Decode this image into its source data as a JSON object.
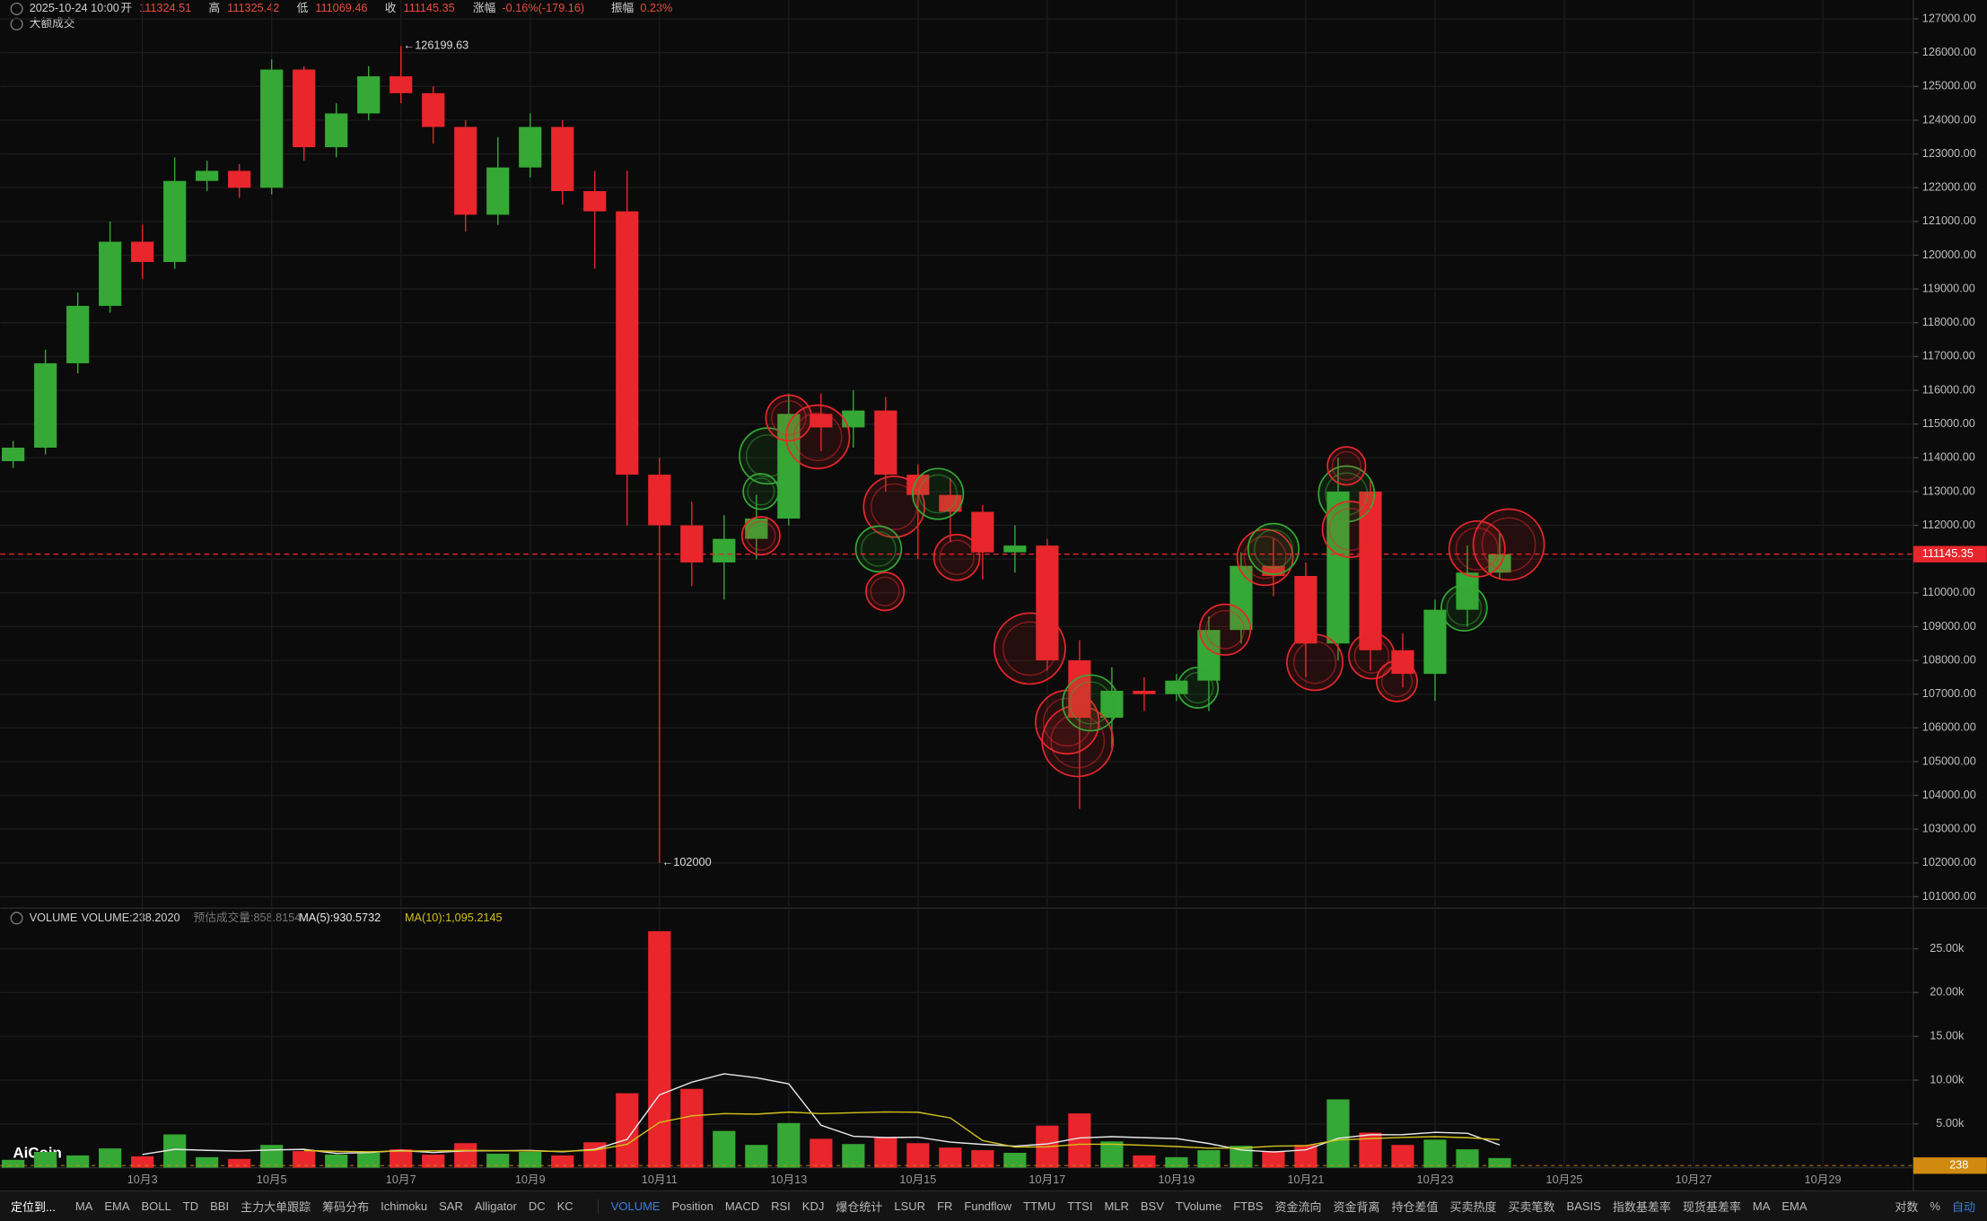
{
  "header": {
    "datetime": "2025-10-24 10:00",
    "items": [
      {
        "label": "开",
        "value": 111324.51
      },
      {
        "label": "高",
        "value": 111325.42
      },
      {
        "label": "低",
        "value": 111069.46
      },
      {
        "label": "收",
        "value": 111145.35
      },
      {
        "label": "涨幅",
        "value": "-0.16%(-179.16)"
      },
      {
        "label": "振幅",
        "value": "0.23%"
      }
    ],
    "overlay": "大额成交"
  },
  "logo": "AiCoin",
  "chart_data": [
    {
      "type": "candlestick",
      "up_color": "#35a835",
      "down_color": "#e8262c",
      "grid": true,
      "x": [
        1,
        1.5,
        2,
        2.5,
        3,
        3.5,
        4,
        4.5,
        5,
        5.5,
        6,
        6.5,
        7,
        7.5,
        8,
        8.5,
        9,
        9.5,
        10,
        10.5,
        11,
        11.5,
        12,
        12.5,
        13,
        13.5,
        14,
        14.5,
        15,
        15.5,
        16,
        16.5,
        17,
        17.5,
        18,
        18.5,
        19,
        19.5,
        20,
        20.5,
        21,
        21.5,
        22,
        22.5,
        23,
        23.5,
        24
      ],
      "open": [
        113900,
        114300,
        116800,
        118500,
        120400,
        119800,
        122200,
        122500,
        122000,
        125500,
        123200,
        124200,
        125300,
        124800,
        123800,
        121200,
        122600,
        123800,
        121900,
        121300,
        113500,
        112000,
        110900,
        111600,
        112200,
        115300,
        114900,
        115400,
        113500,
        112900,
        112400,
        111200,
        111400,
        108000,
        106300,
        107100,
        107000,
        107400,
        108900,
        110800,
        110500,
        108500,
        113000,
        108300,
        107600,
        109500,
        110600
      ],
      "high": [
        114500,
        117200,
        118900,
        121000,
        120900,
        122900,
        122800,
        122700,
        125800,
        125600,
        124500,
        125600,
        126199.63,
        125000,
        124000,
        123500,
        124200,
        124000,
        122500,
        122500,
        114000,
        112700,
        112300,
        112900,
        115900,
        115900,
        116000,
        115800,
        113800,
        113400,
        112600,
        112000,
        111600,
        108600,
        107800,
        107500,
        107600,
        109300,
        111200,
        111600,
        110900,
        114000,
        113400,
        108800,
        109800,
        111400,
        111800
      ],
      "low": [
        113700,
        114100,
        116500,
        118300,
        119300,
        119600,
        121900,
        121700,
        121800,
        122800,
        122900,
        124000,
        124500,
        123300,
        120700,
        120900,
        122300,
        121500,
        119600,
        112000,
        102000,
        110200,
        109800,
        111000,
        112000,
        114200,
        114300,
        113000,
        111000,
        111500,
        110400,
        110600,
        107700,
        103600,
        105400,
        106500,
        106800,
        106500,
        108500,
        109900,
        107500,
        108000,
        107700,
        107200,
        106800,
        109000,
        110400
      ],
      "close": [
        114300,
        116800,
        118500,
        120400,
        119800,
        122200,
        122500,
        122000,
        125500,
        123200,
        124200,
        125300,
        124800,
        123800,
        121200,
        122600,
        123800,
        121900,
        121300,
        113500,
        112000,
        110900,
        111600,
        112200,
        115300,
        114900,
        115400,
        113500,
        112900,
        112400,
        111200,
        111400,
        108000,
        106300,
        107100,
        107000,
        107400,
        108900,
        110800,
        110500,
        108500,
        113000,
        108300,
        107600,
        109500,
        110600,
        111145.35
      ],
      "xlim": [
        0.8,
        30.4
      ],
      "ylim": [
        100700,
        127560
      ],
      "yticks": [
        {
          "value": 101000,
          "label": "101000.00"
        },
        {
          "value": 102000,
          "label": "102000.00"
        },
        {
          "value": 103000,
          "label": "103000.00"
        },
        {
          "value": 104000,
          "label": "104000.00"
        },
        {
          "value": 105000,
          "label": "105000.00"
        },
        {
          "value": 106000,
          "label": "106000.00"
        },
        {
          "value": 107000,
          "label": "107000.00"
        },
        {
          "value": 108000,
          "label": "108000.00"
        },
        {
          "value": 109000,
          "label": "109000.00"
        },
        {
          "value": 110000,
          "label": "110000.00"
        },
        {
          "value": 111000,
          "label": "111000.00"
        },
        {
          "value": 112000,
          "label": "112000.00"
        },
        {
          "value": 113000,
          "label": "113000.00"
        },
        {
          "value": 114000,
          "label": "114000.00"
        },
        {
          "value": 115000,
          "label": "115000.00"
        },
        {
          "value": 116000,
          "label": "116000.00"
        },
        {
          "value": 117000,
          "label": "117000.00"
        },
        {
          "value": 118000,
          "label": "118000.00"
        },
        {
          "value": 119000,
          "label": "119000.00"
        },
        {
          "value": 120000,
          "label": "120000.00"
        },
        {
          "value": 121000,
          "label": "121000.00"
        },
        {
          "value": 122000,
          "label": "122000.00"
        },
        {
          "value": 123000,
          "label": "123000.00"
        },
        {
          "value": 124000,
          "label": "124000.00"
        },
        {
          "value": 125000,
          "label": "125000.00"
        },
        {
          "value": 126000,
          "label": "126000.00"
        },
        {
          "value": 127000,
          "label": "127000.00"
        }
      ],
      "xticks": [
        {
          "value": 3,
          "label": "10月3"
        },
        {
          "value": 5,
          "label": "10月5"
        },
        {
          "value": 7,
          "label": "10月7"
        },
        {
          "value": 9,
          "label": "10月9"
        },
        {
          "value": 11,
          "label": "10月11"
        },
        {
          "value": 13,
          "label": "10月13"
        },
        {
          "value": 15,
          "label": "10月15"
        },
        {
          "value": 17,
          "label": "10月17"
        },
        {
          "value": 19,
          "label": "10月19"
        },
        {
          "value": 21,
          "label": "10月21"
        },
        {
          "value": 23,
          "label": "10月23"
        },
        {
          "value": 25,
          "label": "10月25"
        },
        {
          "value": 27,
          "label": "10月27"
        },
        {
          "value": 29,
          "label": "10月29"
        }
      ],
      "last_price": 111145.35,
      "max_marker": 126199.63,
      "min_marker": 102000.0,
      "bubbles": [
        {
          "x": 12.67,
          "price": 114055,
          "size": 22,
          "color": "#35a835"
        },
        {
          "x": 13.0,
          "price": 115180,
          "size": 18,
          "color": "#e8262c"
        },
        {
          "x": 13.45,
          "price": 114620,
          "size": 25,
          "color": "#e8262c"
        },
        {
          "x": 12.57,
          "price": 113000,
          "size": 14,
          "color": "#35a835"
        },
        {
          "x": 12.57,
          "price": 111690,
          "size": 15,
          "color": "#e8262c"
        },
        {
          "x": 14.63,
          "price": 112550,
          "size": 24,
          "color": "#e8262c"
        },
        {
          "x": 15.31,
          "price": 112930,
          "size": 20,
          "color": "#35a835"
        },
        {
          "x": 14.39,
          "price": 111300,
          "size": 18,
          "color": "#35a835"
        },
        {
          "x": 14.49,
          "price": 110040,
          "size": 15,
          "color": "#e8262c"
        },
        {
          "x": 15.6,
          "price": 111050,
          "size": 18,
          "color": "#e8262c"
        },
        {
          "x": 16.73,
          "price": 108350,
          "size": 28,
          "color": "#e8262c"
        },
        {
          "x": 17.31,
          "price": 106170,
          "size": 25,
          "color": "#e8262c"
        },
        {
          "x": 17.47,
          "price": 105610,
          "size": 28,
          "color": "#e8262c"
        },
        {
          "x": 17.67,
          "price": 106740,
          "size": 22,
          "color": "#35a835"
        },
        {
          "x": 19.33,
          "price": 107190,
          "size": 16,
          "color": "#35a835"
        },
        {
          "x": 19.75,
          "price": 108910,
          "size": 20,
          "color": "#e8262c"
        },
        {
          "x": 20.37,
          "price": 111050,
          "size": 22,
          "color": "#e8262c"
        },
        {
          "x": 20.5,
          "price": 111300,
          "size": 20,
          "color": "#35a835"
        },
        {
          "x": 21.14,
          "price": 107940,
          "size": 22,
          "color": "#e8262c"
        },
        {
          "x": 21.63,
          "price": 112930,
          "size": 22,
          "color": "#35a835"
        },
        {
          "x": 21.69,
          "price": 111880,
          "size": 22,
          "color": "#e8262c"
        },
        {
          "x": 21.63,
          "price": 113760,
          "size": 15,
          "color": "#e8262c"
        },
        {
          "x": 22.02,
          "price": 108130,
          "size": 18,
          "color": "#e8262c"
        },
        {
          "x": 22.41,
          "price": 107380,
          "size": 16,
          "color": "#e8262c"
        },
        {
          "x": 23.45,
          "price": 109550,
          "size": 18,
          "color": "#35a835"
        },
        {
          "x": 23.65,
          "price": 111300,
          "size": 22,
          "color": "#e8262c"
        },
        {
          "x": 24.14,
          "price": 111430,
          "size": 28,
          "color": "#e8262c"
        }
      ]
    },
    {
      "type": "bar",
      "title": "VOLUME",
      "legend": [
        {
          "text": "VOLUME:238.2020",
          "color": "#cfcfcf"
        },
        {
          "text": "预估成交量:858.8154",
          "color": "#777777"
        },
        {
          "text": "MA(5):930.5732",
          "color": "#e8e8e8"
        },
        {
          "text": "MA(10):1,095.2145",
          "color": "#d4c21c"
        }
      ],
      "values": [
        900,
        1800,
        1400,
        2200,
        1300,
        3800,
        1200,
        1000,
        2600,
        1900,
        1500,
        1700,
        2100,
        1500,
        2800,
        1600,
        1800,
        1400,
        2900,
        8500,
        27000,
        9000,
        4200,
        2600,
        5100,
        3300,
        2700,
        3500,
        2800,
        2300,
        2000,
        1700,
        4800,
        6200,
        3000,
        1400,
        1200,
        2000,
        2500,
        1900,
        2600,
        7800,
        4000,
        2600,
        3200,
        2100,
        1100
      ],
      "ma5": [
        null,
        null,
        null,
        null,
        1520,
        2100,
        1980,
        1900,
        2020,
        2100,
        1640,
        1740,
        1960,
        1740,
        1920,
        1940,
        1960,
        1820,
        2100,
        3240,
        8320,
        9760,
        10720,
        10260,
        9580,
        4840,
        3580,
        3440,
        3480,
        2920,
        2660,
        2460,
        2720,
        3400,
        3540,
        3420,
        3320,
        2760,
        2020,
        1800,
        2040,
        3360,
        3760,
        3780,
        4040,
        3940,
        2600
      ],
      "ma10": [
        null,
        null,
        null,
        null,
        null,
        null,
        null,
        null,
        null,
        1960,
        1870,
        1820,
        1900,
        1930,
        1970,
        1950,
        1910,
        1870,
        2000,
        2680,
        5160,
        5910,
        6180,
        6120,
        6350,
        6170,
        6280,
        6360,
        6330,
        5690,
        3090,
        2360,
        2380,
        2680,
        2680,
        2560,
        2410,
        2220,
        2240,
        2460,
        2510,
        3160,
        3330,
        3450,
        3550,
        3430,
        3200
      ],
      "ma5_color": "#e8e8e8",
      "ma10_color": "#d4c21c",
      "ylim": [
        0,
        29500
      ],
      "yticks": [
        {
          "value": 5000,
          "label": "5.00k"
        },
        {
          "value": 10000,
          "label": "10.00k"
        },
        {
          "value": 15000,
          "label": "15.00k"
        },
        {
          "value": 20000,
          "label": "20.00k"
        },
        {
          "value": 25000,
          "label": "25.00k"
        }
      ],
      "last_volume_marker": 238
    }
  ],
  "toolbar": {
    "locate": "定位到...",
    "left_indicators": [
      "MA",
      "EMA",
      "BOLL",
      "TD",
      "BBI",
      "主力大单跟踪",
      "筹码分布",
      "Ichimoku",
      "SAR",
      "Alligator",
      "DC",
      "KC"
    ],
    "right_indicators": [
      "VOLUME",
      "Position",
      "MACD",
      "RSI",
      "KDJ",
      "爆仓统计",
      "LSUR",
      "FR",
      "Fundflow",
      "TTMU",
      "TTSI",
      "MLR",
      "BSV",
      "TVolume",
      "FTBS",
      "资金流向",
      "资金背离",
      "持仓差值",
      "买卖热度",
      "买卖笔数",
      "BASIS",
      "指数基差率",
      "现货基差率",
      "MA",
      "EMA"
    ],
    "scale_options": [
      "对数",
      "%",
      "自动"
    ]
  }
}
